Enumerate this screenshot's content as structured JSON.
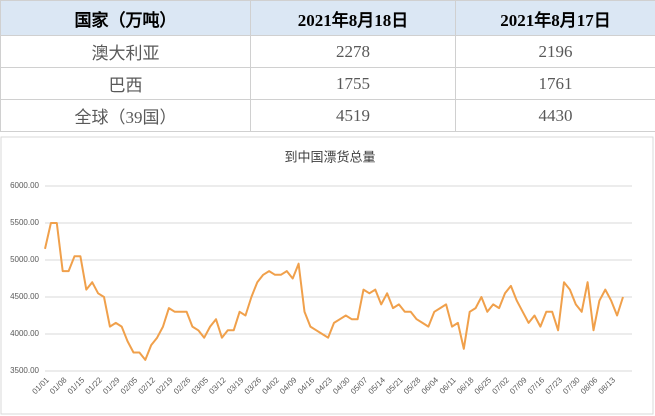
{
  "table": {
    "header": [
      "国家（万吨）",
      "2021年8月18日",
      "2021年8月17日"
    ],
    "rows": [
      [
        "澳大利亚",
        2278,
        2196
      ],
      [
        "巴西",
        1755,
        1761
      ],
      [
        "全球（39国）",
        4519,
        4430
      ]
    ]
  },
  "chart_data": {
    "type": "line",
    "title": "到中国漂货总量",
    "color": "#f0a04b",
    "grid": true,
    "ylim": [
      3500,
      6000
    ],
    "yticks": [
      {
        "value": 3500,
        "label": "3500.00"
      },
      {
        "value": 4000,
        "label": "4000.00"
      },
      {
        "value": 4500,
        "label": "4500.00"
      },
      {
        "value": 5000,
        "label": "5000.00"
      },
      {
        "value": 5500,
        "label": "5500.00"
      },
      {
        "value": 6000,
        "label": "6000.00"
      }
    ],
    "categories": [
      "01/01",
      null,
      null,
      "01/08",
      null,
      null,
      "01/15",
      null,
      null,
      "01/22",
      null,
      null,
      "01/29",
      null,
      null,
      "02/05",
      null,
      null,
      "02/12",
      null,
      null,
      "02/19",
      null,
      null,
      "02/26",
      null,
      null,
      "03/05",
      null,
      null,
      "03/12",
      null,
      null,
      "03/19",
      null,
      null,
      "03/26",
      null,
      null,
      "04/02",
      null,
      null,
      "04/09",
      null,
      null,
      "04/16",
      null,
      null,
      "04/23",
      null,
      null,
      "04/30",
      null,
      null,
      "05/07",
      null,
      null,
      "05/14",
      null,
      null,
      "05/21",
      null,
      null,
      "05/28",
      null,
      null,
      "06/04",
      null,
      null,
      "06/11",
      null,
      null,
      "06/18",
      null,
      null,
      "06/25",
      null,
      null,
      "07/02",
      null,
      null,
      "07/09",
      null,
      null,
      "07/16",
      null,
      null,
      "07/23",
      null,
      null,
      "07/30",
      null,
      null,
      "08/06",
      null,
      null,
      "08/13",
      null,
      null
    ],
    "values": [
      5150,
      5500,
      5500,
      4850,
      4850,
      5050,
      5050,
      4600,
      4700,
      4550,
      4500,
      4100,
      4150,
      4100,
      3900,
      3750,
      3750,
      3650,
      3850,
      3950,
      4100,
      4350,
      4300,
      4300,
      4300,
      4100,
      4050,
      3950,
      4100,
      4200,
      3950,
      4050,
      4050,
      4300,
      4250,
      4500,
      4700,
      4800,
      4850,
      4800,
      4800,
      4850,
      4750,
      4950,
      4300,
      4100,
      4050,
      4000,
      3950,
      4150,
      4200,
      4250,
      4200,
      4200,
      4600,
      4550,
      4600,
      4400,
      4550,
      4350,
      4400,
      4300,
      4300,
      4200,
      4150,
      4100,
      4300,
      4350,
      4400,
      4100,
      4150,
      3800,
      4300,
      4350,
      4500,
      4300,
      4400,
      4350,
      4550,
      4650,
      4450,
      4300,
      4150,
      4250,
      4100,
      4300,
      4300,
      4050,
      4700,
      4600,
      4400,
      4300,
      4700,
      4050,
      4450,
      4600,
      4450,
      4250,
      4500
    ]
  }
}
